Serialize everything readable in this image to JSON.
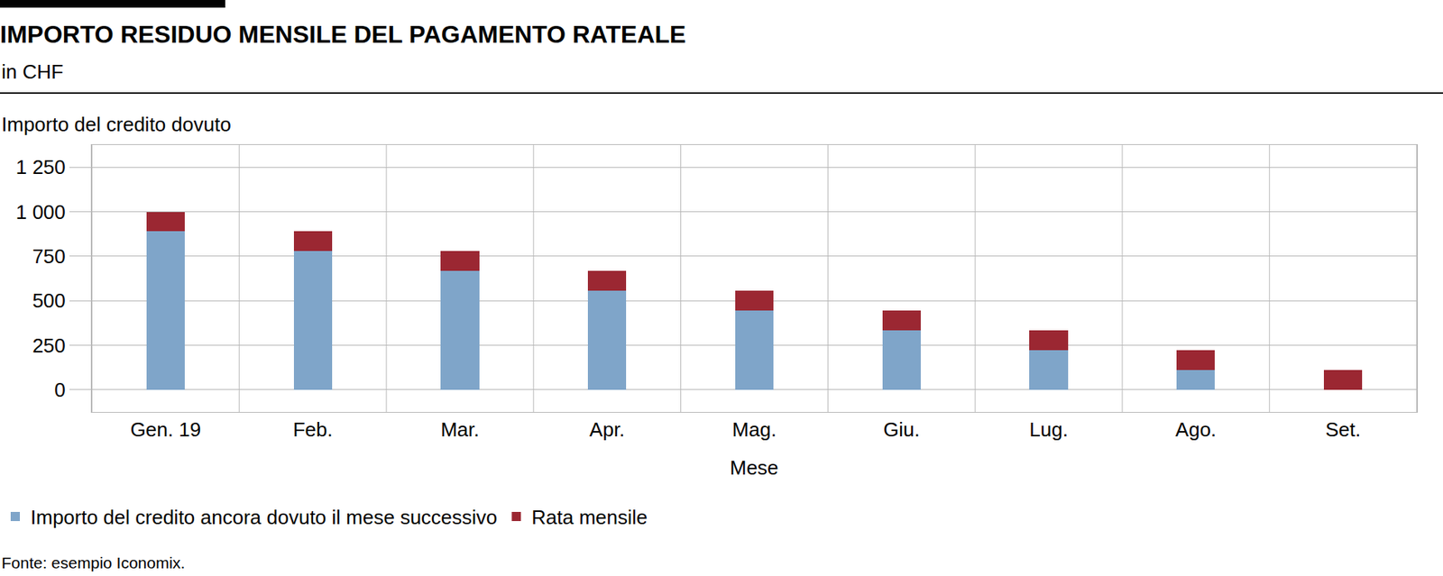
{
  "chart_data": {
    "type": "bar",
    "title": "IMPORTO RESIDUO MENSILE DEL PAGAMENTO RATEALE",
    "subtitle": "in CHF",
    "y_label": "Importo del credito dovuto",
    "x_label": "Mese",
    "source": "Fonte: esempio Iconomix.",
    "categories": [
      "Gen. 19",
      "Feb.",
      "Mar.",
      "Apr.",
      "Mag.",
      "Giu.",
      "Lug.",
      "Ago.",
      "Set."
    ],
    "series": [
      {
        "name": "Importo del credito ancora dovuto il mese successivo",
        "color": "#7fa5c9",
        "values": [
          888.9,
          777.8,
          666.7,
          555.6,
          444.4,
          333.3,
          222.2,
          111.1,
          0
        ]
      },
      {
        "name": "Rata mensile",
        "color": "#9b2732",
        "values": [
          111.1,
          111.1,
          111.1,
          111.1,
          111.1,
          111.1,
          111.1,
          111.1,
          111.1
        ]
      }
    ],
    "ylim": [
      -125,
      1375
    ],
    "yticks": [
      0,
      250,
      500,
      750,
      {
        "value": 1000,
        "label": "1 000"
      },
      {
        "value": 1250,
        "label": "1 250"
      }
    ],
    "stacked": true,
    "grid": true,
    "legend": "bottom"
  }
}
